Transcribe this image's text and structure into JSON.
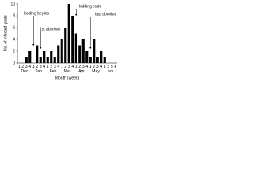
{
  "chart_data": {
    "type": "bar",
    "y_label": "No. of infected goats",
    "x_label": "Month (week)",
    "categories": [
      "1",
      "2",
      "3",
      "4",
      "1",
      "2",
      "3",
      "4",
      "1",
      "2",
      "3",
      "4",
      "1",
      "2",
      "3",
      "4",
      "1",
      "2",
      "3",
      "4",
      "1",
      "2",
      "3",
      "4",
      "1",
      "2",
      "3",
      "4"
    ],
    "months": [
      "Dec",
      "Jan",
      "Feb",
      "Mar",
      "Apr",
      "May",
      "Jun"
    ],
    "values": [
      0,
      0,
      1,
      2,
      0,
      3,
      1,
      2,
      1,
      2,
      1,
      3,
      4,
      6,
      10,
      8,
      5,
      3,
      4,
      2,
      1,
      4,
      1,
      2,
      1,
      0,
      0,
      0
    ],
    "color": "#000000",
    "ylim": [
      0,
      10
    ],
    "yticks": [
      0,
      2,
      4,
      6,
      8,
      10
    ],
    "annotations": [
      "kidding begins",
      "1st abortion",
      "kidding ends",
      "last abortion"
    ]
  }
}
